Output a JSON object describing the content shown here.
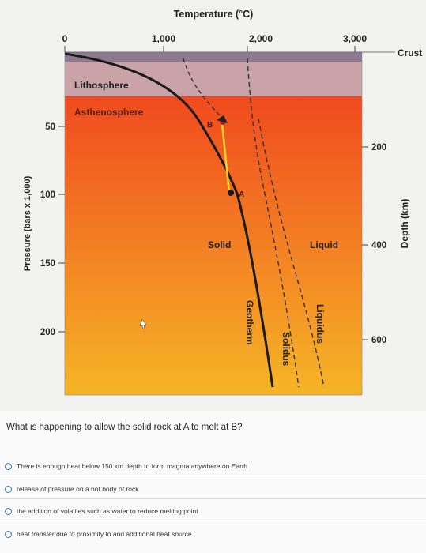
{
  "diagram": {
    "top_axis_title": "Temperature (°C)",
    "top_ticks": [
      "0",
      "1,000",
      "2,000",
      "3,000"
    ],
    "left_axis_title": "Pressure (bars x 1,000)",
    "left_ticks": [
      "50",
      "100",
      "150",
      "200"
    ],
    "right_axis_title": "Depth (km)",
    "right_ticks": [
      "200",
      "400",
      "600"
    ],
    "labels": {
      "crust": "Crust",
      "lithosphere": "Lithosphere",
      "asthenosphere": "Asthenosphere",
      "point_a": "A",
      "point_b": "B",
      "solid": "Solid",
      "liquid": "Liquid",
      "geotherm": "Geotherm",
      "solidus": "Solidus",
      "liquidus": "Liquidus"
    },
    "colors": {
      "crust": "#8e7a90",
      "lithosphere": "#c9a3a8",
      "mantle_top": "#f04a1e",
      "mantle_bottom": "#f5b526",
      "geotherm_line": "#1a1a1a",
      "path_a_to_b": "#f4d22c"
    }
  },
  "question": {
    "text": "What is happening to allow the solid rock at A to melt at B?",
    "options": [
      "There is enough heat below 150 km depth to form magma anywhere on Earth",
      "release of pressure on a hot body of rock",
      "the addition of volatiles such as water to reduce melting point",
      "heat transfer due to proximity to and additional heat source"
    ]
  }
}
